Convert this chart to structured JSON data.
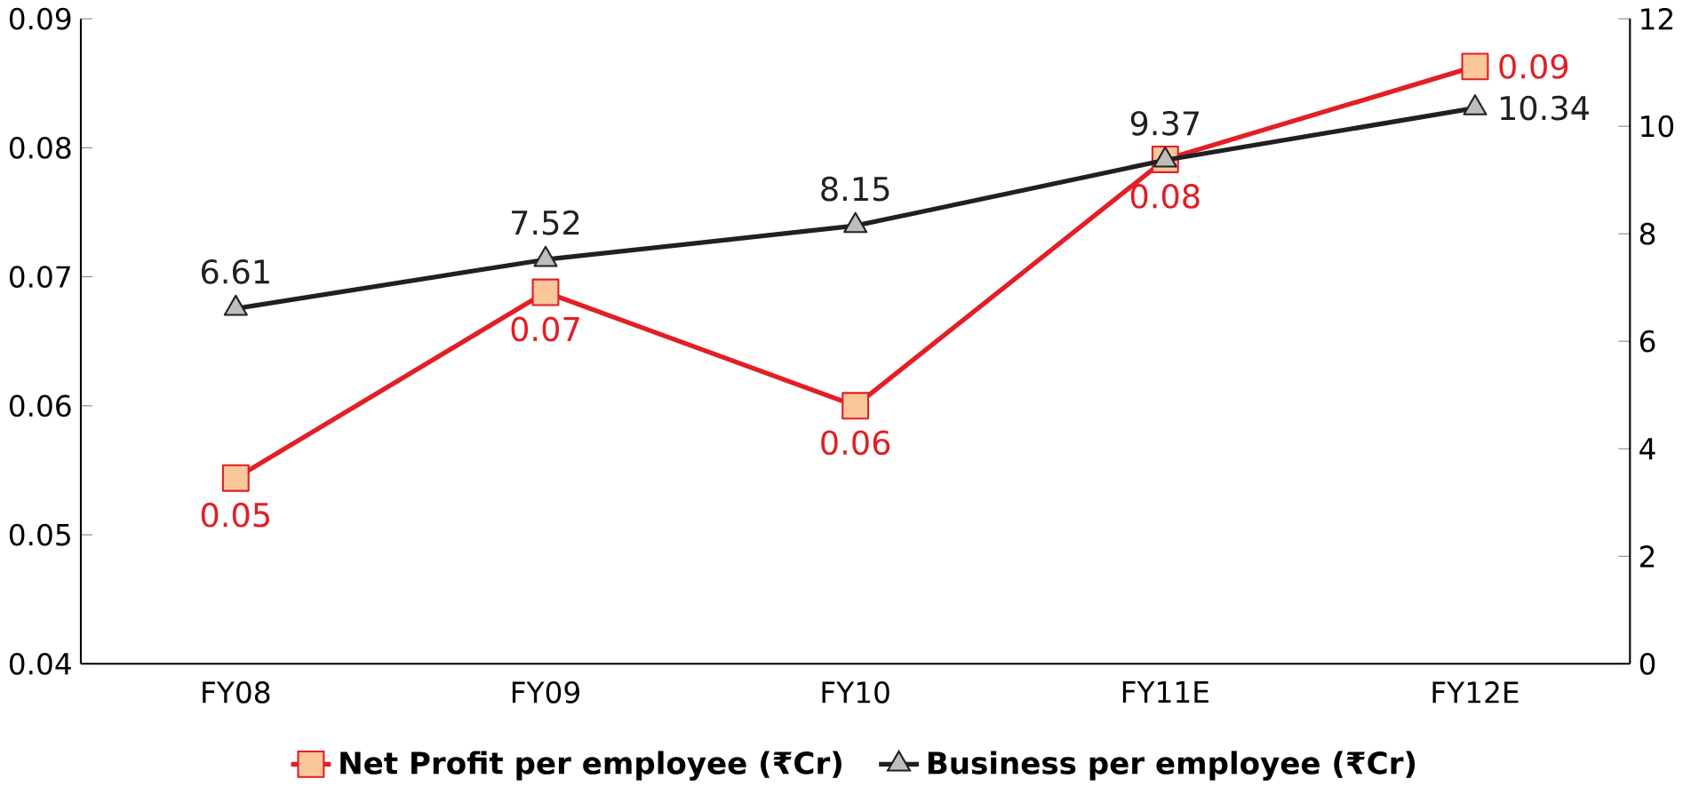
{
  "chart_data": {
    "type": "line",
    "categories": [
      "FY08",
      "FY09",
      "FY10",
      "FY11E",
      "FY12E"
    ],
    "series": [
      {
        "name": "Net Profit per employee (₹Cr)",
        "color": "#e31e24",
        "marker": "square",
        "values": [
          0.0544,
          0.0688,
          0.06,
          0.0791,
          0.0863
        ],
        "value_labels": [
          "0.05",
          "0.07",
          "0.06",
          "0.08",
          "0.09"
        ]
      },
      {
        "name": "Business per employee (₹Cr)",
        "color": "#231f20",
        "marker": "triangle",
        "axis": "y2",
        "values": [
          6.61,
          7.52,
          8.15,
          9.37,
          10.34
        ],
        "value_labels": [
          "6.61",
          "7.52",
          "8.15",
          "9.37",
          "10.34"
        ]
      }
    ],
    "ylim": [
      0.04,
      0.09
    ],
    "yticks": [
      0.04,
      0.05,
      0.06,
      0.07,
      0.08,
      0.09
    ],
    "y2lim": [
      0,
      12
    ],
    "y2ticks": [
      0,
      2,
      4,
      6,
      8,
      10,
      12
    ],
    "legend": "bottom",
    "grid": false
  }
}
